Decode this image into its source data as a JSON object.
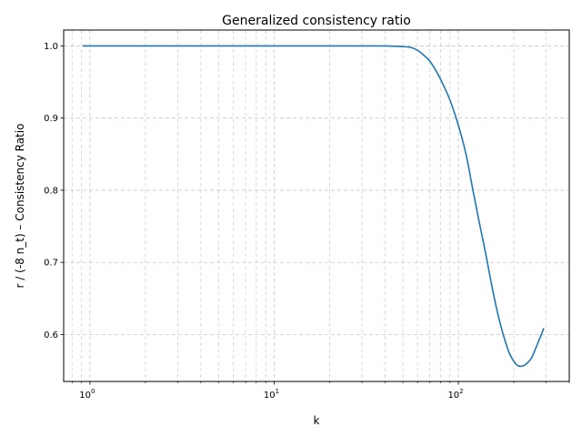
{
  "chart_data": {
    "type": "line",
    "title": "Generalized consistency ratio",
    "xlabel": "k",
    "ylabel": "r / (-8 n_t) – Consistency Ratio",
    "x_scale": "log",
    "xlim": [
      0.72,
      400
    ],
    "ylim": [
      0.535,
      1.022
    ],
    "grid": true,
    "grid_style": "dashed",
    "x_ticks": [
      {
        "value": 1,
        "base": "10",
        "exp": "0"
      },
      {
        "value": 10,
        "base": "10",
        "exp": "1"
      },
      {
        "value": 100,
        "base": "10",
        "exp": "2"
      }
    ],
    "y_ticks": [
      {
        "value": 0.6,
        "label": "0.6"
      },
      {
        "value": 0.7,
        "label": "0.7"
      },
      {
        "value": 0.8,
        "label": "0.8"
      },
      {
        "value": 0.9,
        "label": "0.9"
      },
      {
        "value": 1.0,
        "label": "1.0"
      }
    ],
    "series": [
      {
        "color": "#1f77b4",
        "x": [
          0.92,
          2,
          5,
          10,
          20,
          30,
          40,
          50,
          55,
          60,
          65,
          70,
          75,
          80,
          90,
          100,
          110,
          120,
          130,
          140,
          150,
          160,
          170,
          180,
          190,
          200,
          210,
          220,
          230,
          240,
          250,
          260,
          270,
          280,
          290
        ],
        "y": [
          1.0,
          1.0,
          1.0,
          1.0,
          1.0,
          1.0,
          1.0,
          0.999,
          0.998,
          0.994,
          0.987,
          0.979,
          0.967,
          0.954,
          0.925,
          0.89,
          0.85,
          0.8,
          0.755,
          0.715,
          0.675,
          0.64,
          0.612,
          0.59,
          0.573,
          0.563,
          0.557,
          0.556,
          0.558,
          0.562,
          0.568,
          0.578,
          0.588,
          0.598,
          0.608
        ]
      }
    ]
  }
}
